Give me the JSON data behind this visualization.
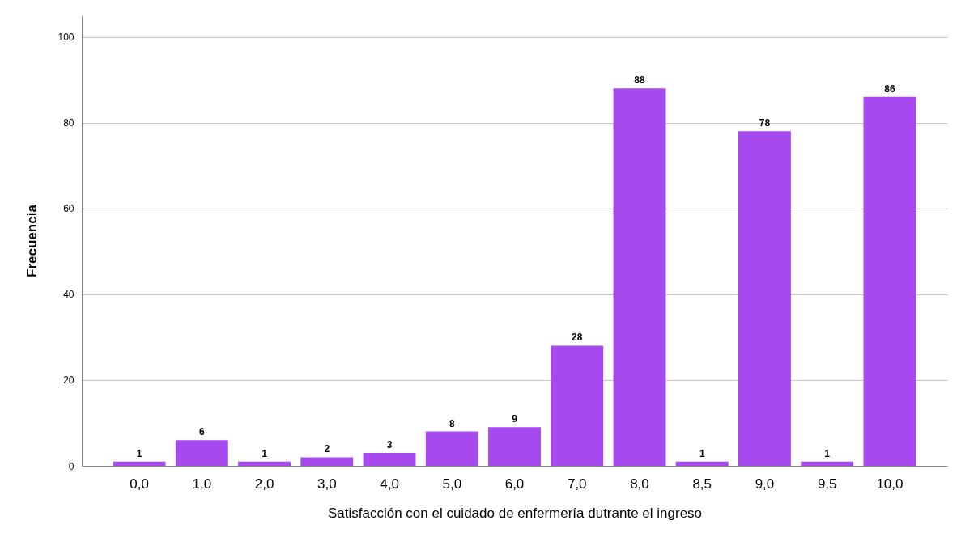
{
  "chart_data": {
    "type": "bar",
    "xlabel": "Satisfacción con el cuidado de enfermería dutrante el ingreso",
    "ylabel": "Frecuencia",
    "categories": [
      "0,0",
      "1,0",
      "2,0",
      "3,0",
      "4,0",
      "5,0",
      "6,0",
      "7,0",
      "8,0",
      "8,5",
      "9,0",
      "9,5",
      "10,0"
    ],
    "values": [
      1,
      6,
      1,
      2,
      3,
      8,
      9,
      28,
      88,
      1,
      78,
      1,
      86
    ],
    "color": "#a64af0",
    "ylim": [
      0,
      105
    ],
    "yticks": [
      0,
      20,
      40,
      60,
      80,
      100
    ],
    "grid": "y",
    "data_labels": true
  }
}
